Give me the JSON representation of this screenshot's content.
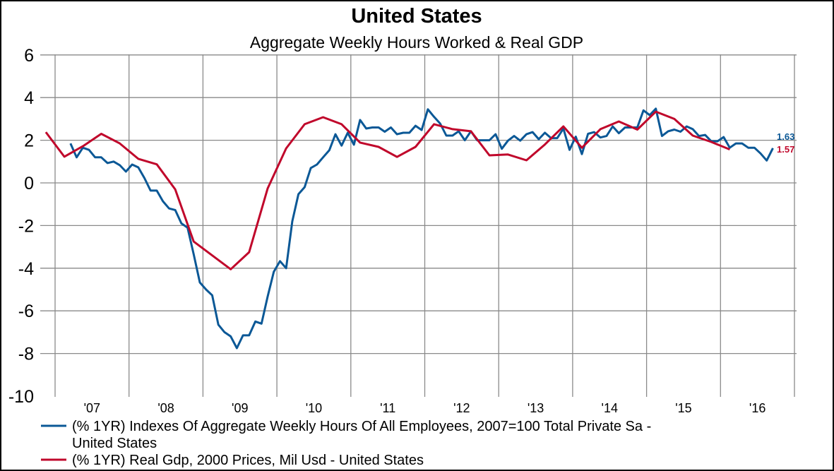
{
  "chart_data": {
    "type": "line",
    "title": "United States",
    "subtitle": "Aggregate Weekly Hours Worked & Real GDP",
    "xlabel": "",
    "ylabel": "",
    "ylim": [
      -10,
      6
    ],
    "yticks": [
      "6",
      "4",
      "2",
      "0",
      "-2",
      "-4",
      "-6",
      "-8",
      "-10"
    ],
    "xtick_labels": [
      "'07",
      "'08",
      "'09",
      "'10",
      "'11",
      "'12",
      "'13",
      "'14",
      "'15",
      "'16"
    ],
    "xlim": [
      "2007-01",
      "2016-12"
    ],
    "grid": true,
    "legend_position": "bottom",
    "series": [
      {
        "name": "(% 1YR) Indexes Of Aggregate Weekly Hours Of All Employees, 2007=100 Total Private Sa  -",
        "name_line2": "United States",
        "color": "#0b5896",
        "frequency": "monthly",
        "last_value_label": "1.63",
        "start": "2007-03",
        "values": [
          1.85,
          1.2,
          1.65,
          1.55,
          1.2,
          1.2,
          0.93,
          1.0,
          0.83,
          0.53,
          0.86,
          0.73,
          0.23,
          -0.36,
          -0.36,
          -0.86,
          -1.2,
          -1.27,
          -1.9,
          -2.1,
          -3.35,
          -4.67,
          -5.0,
          -5.27,
          -6.65,
          -7.0,
          -7.2,
          -7.75,
          -7.15,
          -7.15,
          -6.5,
          -6.6,
          -5.33,
          -4.17,
          -3.67,
          -4.0,
          -1.8,
          -0.53,
          -0.2,
          0.7,
          0.86,
          1.2,
          1.53,
          2.28,
          1.75,
          2.35,
          1.79,
          2.95,
          2.55,
          2.6,
          2.6,
          2.4,
          2.6,
          2.28,
          2.35,
          2.35,
          2.68,
          2.48,
          3.45,
          3.1,
          2.78,
          2.22,
          2.22,
          2.42,
          2.0,
          2.42,
          2.0,
          2.0,
          2.0,
          2.28,
          1.6,
          1.98,
          2.2,
          1.98,
          2.28,
          2.38,
          2.05,
          2.35,
          2.1,
          2.1,
          2.55,
          1.55,
          2.17,
          1.35,
          2.3,
          2.38,
          2.13,
          2.2,
          2.65,
          2.33,
          2.6,
          2.6,
          2.6,
          3.4,
          3.18,
          3.48,
          2.2,
          2.42,
          2.5,
          2.4,
          2.65,
          2.52,
          2.2,
          2.25,
          1.95,
          1.95,
          2.15,
          1.65,
          1.85,
          1.85,
          1.65,
          1.65,
          1.38,
          1.05,
          1.63
        ]
      },
      {
        "name": "(% 1YR) Real Gdp, 2000 Prices, Mil Usd - United States",
        "color": "#c0072b",
        "frequency": "quarterly",
        "last_value_label": "1.57",
        "start": "2006-Q4",
        "values": [
          2.38,
          1.23,
          1.72,
          2.3,
          1.85,
          1.13,
          0.87,
          -0.3,
          -2.75,
          -3.4,
          -4.05,
          -3.25,
          -0.26,
          1.62,
          2.75,
          3.08,
          2.75,
          1.89,
          1.69,
          1.22,
          1.69,
          2.75,
          2.52,
          2.42,
          1.29,
          1.33,
          1.06,
          1.8,
          2.65,
          1.65,
          2.52,
          2.88,
          2.5,
          3.34,
          3.0,
          2.22,
          1.92,
          1.57
        ]
      }
    ]
  }
}
